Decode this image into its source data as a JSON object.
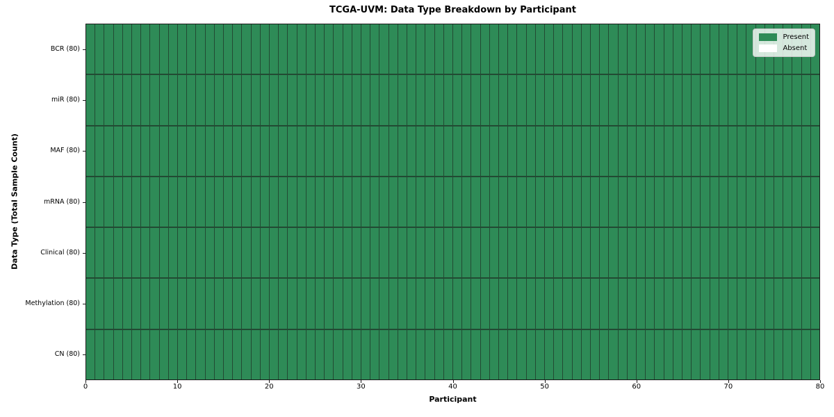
{
  "chart_data": {
    "type": "heatmap",
    "title": "TCGA-UVM: Data Type Breakdown by Participant",
    "xlabel": "Participant",
    "ylabel": "Data Type (Total Sample Count)",
    "x_range": [
      0,
      80
    ],
    "x_ticks": [
      0,
      10,
      20,
      30,
      40,
      50,
      60,
      70,
      80
    ],
    "n_participants": 80,
    "grid": "cell borders between every participant column and every data-type row",
    "rows": [
      {
        "label": "BCR (80)",
        "data_type": "BCR",
        "total_samples": 80,
        "present": 80,
        "absent": 0
      },
      {
        "label": "miR (80)",
        "data_type": "miR",
        "total_samples": 80,
        "present": 80,
        "absent": 0
      },
      {
        "label": "MAF (80)",
        "data_type": "MAF",
        "total_samples": 80,
        "present": 80,
        "absent": 0
      },
      {
        "label": "mRNA (80)",
        "data_type": "mRNA",
        "total_samples": 80,
        "present": 80,
        "absent": 0
      },
      {
        "label": "Clinical (80)",
        "data_type": "Clinical",
        "total_samples": 80,
        "present": 80,
        "absent": 0
      },
      {
        "label": "Methylation (80)",
        "data_type": "Methylation",
        "total_samples": 80,
        "present": 80,
        "absent": 0
      },
      {
        "label": "CN (80)",
        "data_type": "CN",
        "total_samples": 80,
        "present": 80,
        "absent": 0
      }
    ],
    "legend": [
      {
        "label": "Present",
        "color": "#2e8b57"
      },
      {
        "label": "Absent",
        "color": "#ffffff"
      }
    ],
    "legend_position": "upper right",
    "colors": {
      "present": "#2e8b57",
      "absent": "#ffffff",
      "grid_line": "#224a33",
      "spine": "#1a1a1a"
    }
  }
}
